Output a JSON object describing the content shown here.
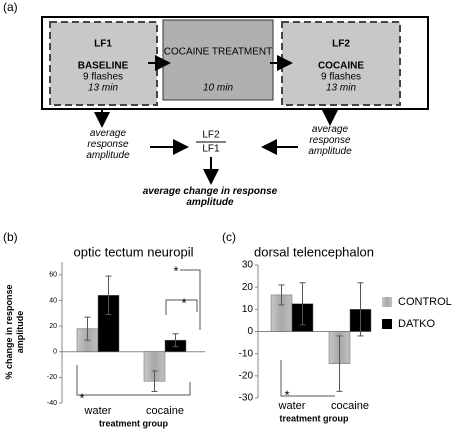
{
  "panel_labels": [
    "(a)",
    "(b)",
    "(c)"
  ],
  "diagram": {
    "box1": {
      "id": "LF1",
      "title": "BASELINE",
      "detail": "9 flashes",
      "time": "13 min"
    },
    "box2": {
      "title": "COCAINE TREATMENT",
      "time": "10 min"
    },
    "box3": {
      "id": "LF2",
      "title": "COCAINE",
      "detail": "9 flashes",
      "time": "13 min"
    },
    "left_note": "average response amplitude",
    "right_note": "average response amplitude",
    "numerator": "LF2",
    "denominator": "LF1",
    "result": "average change in response amplitude"
  },
  "chart_data": [
    {
      "type": "bar",
      "title": "optic tectum neuropil",
      "y_label": "% change in response amplitude",
      "x_label": "treatment group",
      "categories": [
        "water",
        "cocaine"
      ],
      "ylim": [
        -40,
        70
      ],
      "yticks": [
        -40,
        -20,
        0,
        20,
        40,
        60
      ],
      "series": [
        {
          "color": "#b0b0b0",
          "values": [
            18,
            -23
          ],
          "errors": [
            9,
            8
          ]
        },
        {
          "color": "#000000",
          "values": [
            44,
            9
          ],
          "errors": [
            15,
            5
          ]
        }
      ],
      "significance": [
        "*",
        "*",
        "*"
      ]
    },
    {
      "type": "bar",
      "title": "dorsal telencephalon",
      "x_label": "treatment group",
      "categories": [
        "water",
        "cocaine"
      ],
      "ylim": [
        -30,
        30
      ],
      "yticks": [
        -30,
        -20,
        -10,
        0,
        10,
        20,
        30
      ],
      "series": [
        {
          "name": "CONTROL",
          "color": "#b0b0b0",
          "values": [
            16.5,
            -14.5
          ],
          "errors": [
            4.5,
            12.5
          ]
        },
        {
          "name": "DATKO",
          "color": "#000000",
          "values": [
            12.5,
            10
          ],
          "errors": [
            9.5,
            12
          ]
        }
      ],
      "significance": [
        "*"
      ]
    }
  ]
}
